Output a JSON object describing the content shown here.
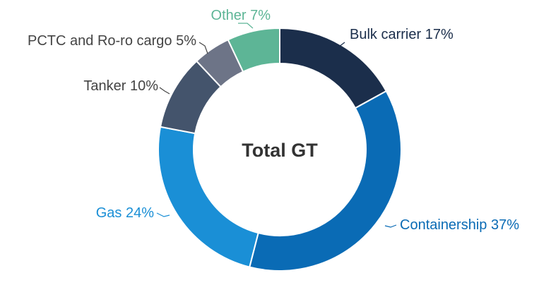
{
  "chart_data": {
    "type": "pie",
    "variant": "donut",
    "center_label": "Total GT",
    "legend": "none",
    "slices": [
      {
        "label": "Bulk carrier",
        "value": 17,
        "value_label": "17%",
        "color": "#1b2e4b",
        "label_color": "#1b2e4b"
      },
      {
        "label": "Containership",
        "value": 37,
        "value_label": "37%",
        "color": "#0a6bb5",
        "label_color": "#0a6bb5"
      },
      {
        "label": "Gas",
        "value": 24,
        "value_label": "24%",
        "color": "#1a8fd6",
        "label_color": "#1a8fd6"
      },
      {
        "label": "Tanker",
        "value": 10,
        "value_label": "10%",
        "color": "#44546c",
        "label_color": "#444444"
      },
      {
        "label": "PCTC and Ro-ro cargo",
        "value": 5,
        "value_label": "5%",
        "color": "#6d7487",
        "label_color": "#444444"
      },
      {
        "label": "Other",
        "value": 7,
        "value_label": "7%",
        "color": "#5db596",
        "label_color": "#5db596"
      }
    ]
  }
}
